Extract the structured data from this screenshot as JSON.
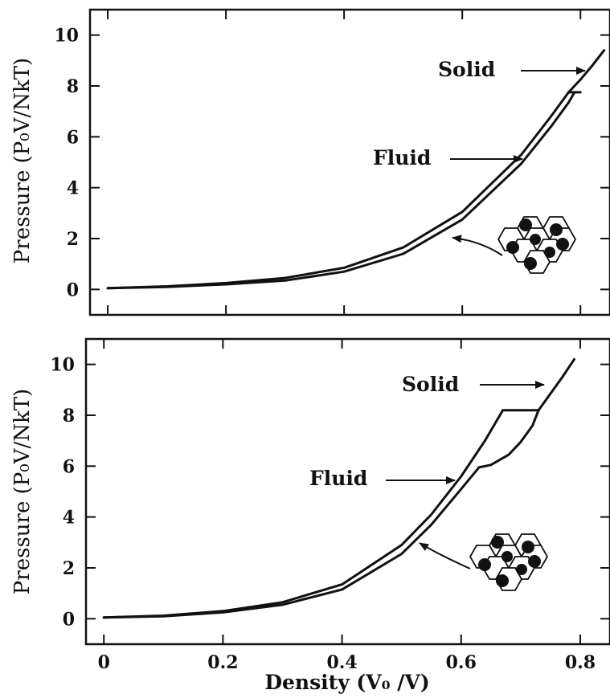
{
  "chart_data": [
    {
      "type": "line",
      "panel": "top",
      "xlabel": "",
      "ylabel": "Pressure (P₀V/NkT)",
      "xlim": [
        -0.03,
        0.85
      ],
      "ylim": [
        -1,
        11
      ],
      "x_ticks": [
        0,
        0.2,
        0.4,
        0.6,
        0.8
      ],
      "y_ticks": [
        0,
        2,
        4,
        6,
        8,
        10
      ],
      "y_tick_labels": [
        "0",
        "2",
        "4",
        "6",
        "8",
        "10"
      ],
      "series": [
        {
          "name": "Fluid",
          "x": [
            0,
            0.1,
            0.2,
            0.3,
            0.4,
            0.5,
            0.6,
            0.7,
            0.75,
            0.78
          ],
          "y": [
            0.05,
            0.12,
            0.25,
            0.45,
            0.85,
            1.65,
            3.05,
            5.3,
            6.8,
            7.75
          ]
        },
        {
          "name": "Solid",
          "x": [
            0.78,
            0.8,
            0.82,
            0.84
          ],
          "y": [
            7.75,
            8.25,
            8.8,
            9.4
          ]
        },
        {
          "name": "",
          "x": [
            0,
            0.1,
            0.2,
            0.3,
            0.4,
            0.5,
            0.6,
            0.7,
            0.75,
            0.78,
            0.79
          ],
          "y": [
            0.05,
            0.1,
            0.2,
            0.35,
            0.7,
            1.4,
            2.75,
            4.95,
            6.4,
            7.35,
            7.75
          ]
        },
        {
          "name": "",
          "x": [
            0.78,
            0.8
          ],
          "y": [
            7.75,
            7.75
          ]
        }
      ],
      "annotations": [
        {
          "text": "Solid",
          "arrow_to": [
            0.79,
            7.95
          ]
        },
        {
          "text": "Fluid",
          "arrow_to": [
            0.695,
            5.05
          ]
        }
      ]
    },
    {
      "type": "line",
      "panel": "bottom",
      "xlabel": "Density (V₀ /V)",
      "ylabel": "Pressure (P₀V/NkT)",
      "xlim": [
        -0.03,
        0.85
      ],
      "ylim": [
        -1,
        11
      ],
      "x_ticks": [
        0,
        0.2,
        0.4,
        0.6,
        0.8
      ],
      "x_tick_labels": [
        "0",
        "0.2",
        "0.4",
        "0.6",
        "0.8"
      ],
      "y_ticks": [
        0,
        2,
        4,
        6,
        8,
        10
      ],
      "y_tick_labels": [
        "0",
        "2",
        "4",
        "6",
        "8",
        "10"
      ],
      "series": [
        {
          "name": "Fluid",
          "x": [
            0,
            0.1,
            0.2,
            0.3,
            0.4,
            0.5,
            0.55,
            0.6,
            0.64,
            0.67
          ],
          "y": [
            0.05,
            0.12,
            0.3,
            0.65,
            1.35,
            2.9,
            4.1,
            5.6,
            7.0,
            8.2
          ]
        },
        {
          "name": "Solid",
          "x": [
            0.73,
            0.75,
            0.77,
            0.79
          ],
          "y": [
            8.2,
            8.85,
            9.5,
            10.2
          ]
        },
        {
          "name": "",
          "x": [
            0,
            0.1,
            0.2,
            0.3,
            0.4,
            0.5,
            0.55,
            0.6,
            0.63
          ],
          "y": [
            0.05,
            0.1,
            0.25,
            0.55,
            1.15,
            2.55,
            3.7,
            5.1,
            5.95
          ]
        },
        {
          "name": "",
          "x": [
            0.63,
            0.65,
            0.68,
            0.7,
            0.72,
            0.73
          ],
          "y": [
            5.95,
            6.05,
            6.45,
            6.95,
            7.6,
            8.2
          ]
        },
        {
          "name": "",
          "x": [
            0.67,
            0.73
          ],
          "y": [
            8.2,
            8.2
          ]
        }
      ],
      "annotations": [
        {
          "text": "Solid",
          "arrow_to": [
            0.72,
            9.1
          ]
        },
        {
          "text": "Fluid",
          "arrow_to": [
            0.56,
            5.5
          ]
        }
      ]
    }
  ]
}
